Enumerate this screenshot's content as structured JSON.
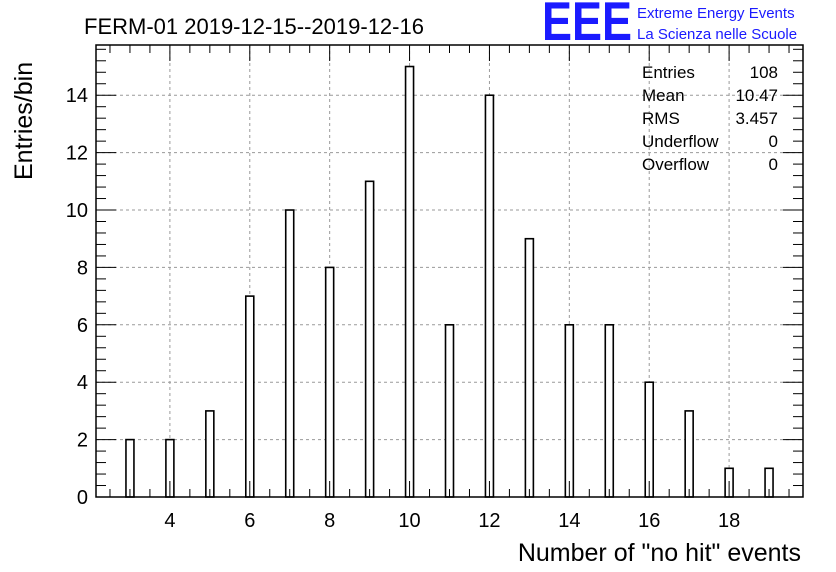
{
  "chart_data": {
    "type": "bar",
    "title": "FERM-01 2019-12-15--2019-12-16",
    "xlabel": "Number of \"no hit\" events",
    "ylabel": "Entries/bin",
    "xlim": [
      2.15,
      19.85
    ],
    "ylim": [
      0,
      15.75
    ],
    "x_ticks": [
      4,
      6,
      8,
      10,
      12,
      14,
      16,
      18
    ],
    "y_ticks": [
      0,
      2,
      4,
      6,
      8,
      10,
      12,
      14
    ],
    "grid": true,
    "x": [
      3,
      4,
      5,
      6,
      7,
      8,
      9,
      10,
      11,
      12,
      13,
      14,
      15,
      16,
      17,
      18,
      19
    ],
    "values": [
      2,
      2,
      3,
      7,
      10,
      8,
      11,
      15,
      6,
      14,
      9,
      6,
      6,
      4,
      3,
      1,
      1
    ],
    "bin_width": 0.2
  },
  "stats": [
    {
      "label": "Entries",
      "value": "108"
    },
    {
      "label": "Mean",
      "value": "10.47"
    },
    {
      "label": "RMS",
      "value": "3.457"
    },
    {
      "label": "Underflow",
      "value": "0"
    },
    {
      "label": "Overflow",
      "value": "0"
    }
  ],
  "logo": {
    "mark": "EEE",
    "line1": "Extreme Energy Events",
    "line2": "La Scienza nelle Scuole",
    "color": "#1a1aff"
  }
}
